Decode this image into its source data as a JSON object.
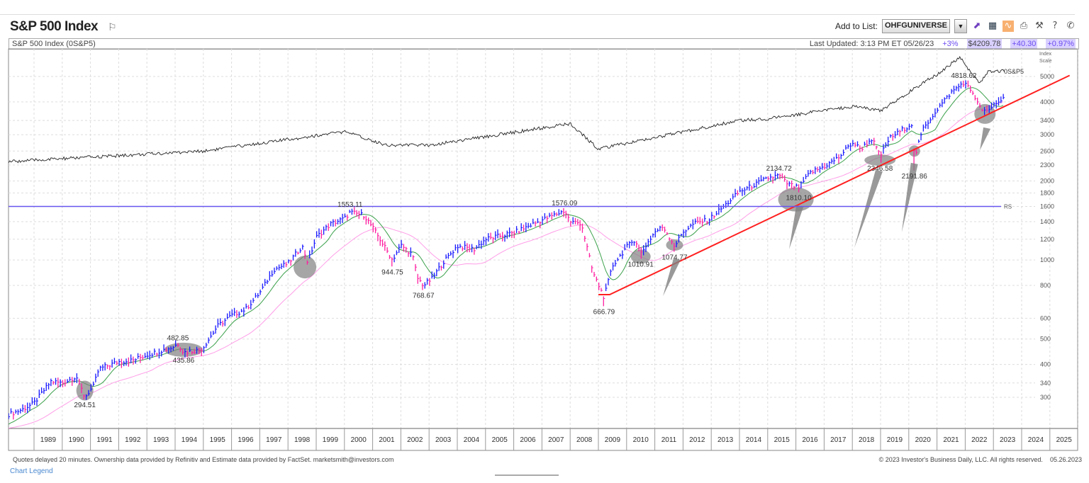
{
  "header": {
    "title": "S&P 500 Index",
    "add_to_list_label": "Add to List:",
    "list_value": "OHFGUNIVERSE"
  },
  "icons": [
    "flag-icon",
    "chart-icon",
    "grid-icon",
    "orange-chart-icon",
    "print-icon",
    "wrench-icon",
    "help-icon",
    "phone-icon"
  ],
  "subbar": {
    "name": "S&P 500 Index  (0S&P5)",
    "last_updated": "Last Updated: 3:13 PM ET 05/26/23",
    "pct_rs": "+3%",
    "price": "$4209.78",
    "change": "+40.30",
    "change_pct": "+0.97%"
  },
  "footer": {
    "disclaimer": "Quotes delayed 20 minutes. Ownership data provided by Refinitiv and Estimate data provided by FactSet. marketsmith@investors.com",
    "copyright": "© 2023 Investor's Business Daily, LLC. All rights reserved.",
    "date": "05.26.2023",
    "chart_legend": "Chart Legend"
  },
  "chart_data": {
    "type": "bar",
    "scale": "log",
    "ylim": [
      250,
      5100
    ],
    "xlim": [
      1988.1,
      2025.9
    ],
    "y_axis_title": [
      "Index",
      "Scale"
    ],
    "y_ticks": [
      5000,
      4000,
      3400,
      3000,
      2600,
      2300,
      2000,
      1800,
      1600,
      1400,
      1200,
      1000,
      800,
      600,
      500,
      400,
      340,
      300
    ],
    "x_ticks": [
      "1989",
      "1990",
      "1991",
      "1992",
      "1993",
      "1994",
      "1995",
      "1996",
      "1997",
      "1998",
      "1999",
      "2000",
      "2001",
      "2002",
      "2003",
      "2004",
      "2005",
      "2006",
      "2007",
      "2008",
      "2009",
      "2010",
      "2011",
      "2012",
      "2013",
      "2014",
      "2015",
      "2016",
      "2017",
      "2018",
      "2019",
      "2020",
      "2021",
      "2022",
      "2023",
      "2024",
      "2025"
    ],
    "grid": true,
    "colors": {
      "up": "#1a1aff",
      "down": "#ff1ea0",
      "ma_short": "#3aa04a",
      "ma_long": "#ff9ee8",
      "rs_line": "#222222",
      "trendline": "#ff2020",
      "horizontal": "#6655ee",
      "highlight": "#808080"
    },
    "price_points": [
      [
        1988.1,
        258
      ],
      [
        1988.6,
        270
      ],
      [
        1989.0,
        285
      ],
      [
        1989.6,
        345
      ],
      [
        1990.0,
        340
      ],
      [
        1990.5,
        360
      ],
      [
        1990.8,
        300
      ],
      [
        1991.1,
        330
      ],
      [
        1991.3,
        385
      ],
      [
        1992.0,
        410
      ],
      [
        1992.5,
        415
      ],
      [
        1993.0,
        435
      ],
      [
        1993.9,
        465
      ],
      [
        1994.1,
        480
      ],
      [
        1994.3,
        445
      ],
      [
        1994.9,
        455
      ],
      [
        1995.0,
        465
      ],
      [
        1995.5,
        560
      ],
      [
        1996.0,
        615
      ],
      [
        1996.5,
        650
      ],
      [
        1997.0,
        750
      ],
      [
        1997.5,
        920
      ],
      [
        1998.0,
        970
      ],
      [
        1998.5,
        1130
      ],
      [
        1998.7,
        980
      ],
      [
        1999.0,
        1220
      ],
      [
        1999.5,
        1370
      ],
      [
        2000.0,
        1440
      ],
      [
        2000.2,
        1520
      ],
      [
        2000.7,
        1480
      ],
      [
        2001.0,
        1330
      ],
      [
        2001.3,
        1180
      ],
      [
        2001.7,
        1000
      ],
      [
        2002.0,
        1140
      ],
      [
        2002.4,
        1050
      ],
      [
        2002.6,
        850
      ],
      [
        2002.8,
        800
      ],
      [
        2003.1,
        850
      ],
      [
        2003.5,
        980
      ],
      [
        2004.0,
        1130
      ],
      [
        2004.6,
        1100
      ],
      [
        2005.0,
        1200
      ],
      [
        2006.0,
        1270
      ],
      [
        2007.0,
        1420
      ],
      [
        2007.8,
        1540
      ],
      [
        2008.0,
        1400
      ],
      [
        2008.4,
        1380
      ],
      [
        2008.8,
        900
      ],
      [
        2009.2,
        720
      ],
      [
        2009.5,
        950
      ],
      [
        2010.0,
        1120
      ],
      [
        2010.3,
        1200
      ],
      [
        2010.5,
        1060
      ],
      [
        2011.0,
        1280
      ],
      [
        2011.3,
        1340
      ],
      [
        2011.7,
        1130
      ],
      [
        2012.0,
        1280
      ],
      [
        2012.4,
        1380
      ],
      [
        2012.9,
        1420
      ],
      [
        2013.5,
        1620
      ],
      [
        2014.0,
        1820
      ],
      [
        2014.6,
        1950
      ],
      [
        2015.0,
        2050
      ],
      [
        2015.4,
        2100
      ],
      [
        2015.7,
        1950
      ],
      [
        2016.1,
        1880
      ],
      [
        2016.5,
        2150
      ],
      [
        2017.0,
        2270
      ],
      [
        2017.5,
        2450
      ],
      [
        2018.0,
        2800
      ],
      [
        2018.3,
        2650
      ],
      [
        2018.7,
        2900
      ],
      [
        2018.98,
        2480
      ],
      [
        2019.3,
        2900
      ],
      [
        2019.9,
        3200
      ],
      [
        2020.1,
        3300
      ],
      [
        2020.2,
        2450
      ],
      [
        2020.5,
        3150
      ],
      [
        2021.0,
        3750
      ],
      [
        2021.5,
        4350
      ],
      [
        2021.95,
        4750
      ],
      [
        2022.3,
        4300
      ],
      [
        2022.5,
        3800
      ],
      [
        2022.8,
        3650
      ],
      [
        2023.0,
        3900
      ],
      [
        2023.4,
        4150
      ]
    ],
    "rs_points": [
      [
        1988.1,
        2370
      ],
      [
        1995.0,
        2600
      ],
      [
        2000.0,
        3080
      ],
      [
        2001.5,
        2740
      ],
      [
        2003.0,
        2740
      ],
      [
        2008.0,
        3300
      ],
      [
        2009.0,
        2650
      ],
      [
        2014.0,
        3400
      ],
      [
        2015.0,
        3450
      ],
      [
        2018.0,
        3850
      ],
      [
        2019.0,
        3700
      ],
      [
        2020.0,
        4360
      ],
      [
        2021.0,
        5100
      ],
      [
        2021.8,
        5920
      ],
      [
        2022.2,
        5200
      ],
      [
        2022.5,
        4700
      ],
      [
        2022.8,
        5200
      ],
      [
        2023.4,
        5250
      ]
    ],
    "rs_label": "0S&P5",
    "horizontal_line": {
      "value": 1600,
      "label": "RS"
    },
    "trendline": [
      [
        2009.0,
        738
      ],
      [
        2009.4,
        738
      ],
      [
        2025.7,
        5046
      ]
    ],
    "labels": [
      {
        "t": 1994.1,
        "value": "482.85",
        "pos": "above"
      },
      {
        "t": 1994.3,
        "value": "435.86",
        "pos": "below"
      },
      {
        "t": 1990.8,
        "value": "294.51",
        "pos": "below"
      },
      {
        "t": 2000.2,
        "value": "1553.11",
        "pos": "above"
      },
      {
        "t": 2001.7,
        "value": "944.75",
        "pos": "below"
      },
      {
        "t": 2002.8,
        "value": "768.67",
        "pos": "below"
      },
      {
        "t": 2007.8,
        "value": "1576.09",
        "pos": "above"
      },
      {
        "t": 2009.2,
        "value": "666.79",
        "pos": "below"
      },
      {
        "t": 2010.5,
        "value": "1010.91",
        "pos": "below"
      },
      {
        "t": 2011.7,
        "value": "1074.77",
        "pos": "below"
      },
      {
        "t": 2015.4,
        "value": "2134.72",
        "pos": "above"
      },
      {
        "t": 2016.1,
        "value": "1810.10",
        "pos": "below"
      },
      {
        "t": 2018.98,
        "value": "2346.58",
        "pos": "below"
      },
      {
        "t": 2020.2,
        "value": "2191.86",
        "pos": "below"
      },
      {
        "t": 2021.95,
        "value": "4818.62",
        "pos": "above"
      }
    ],
    "highlights": [
      [
        1990.8,
        318
      ],
      [
        1994.3,
        455
      ],
      [
        1998.6,
        940
      ],
      [
        2010.5,
        1030
      ],
      [
        2011.7,
        1140
      ],
      [
        2016.0,
        1700
      ],
      [
        2018.98,
        2400
      ],
      [
        2020.2,
        2600
      ],
      [
        2022.7,
        3600
      ]
    ],
    "arrows": [
      [
        2011.29,
        729,
        2011.79,
        1014
      ],
      [
        2015.76,
        1100,
        2016.14,
        1614
      ],
      [
        2018.07,
        1113,
        2018.95,
        2203
      ],
      [
        2019.75,
        1276,
        2020.2,
        2345
      ],
      [
        2022.52,
        2620,
        2022.77,
        3200
      ]
    ]
  }
}
